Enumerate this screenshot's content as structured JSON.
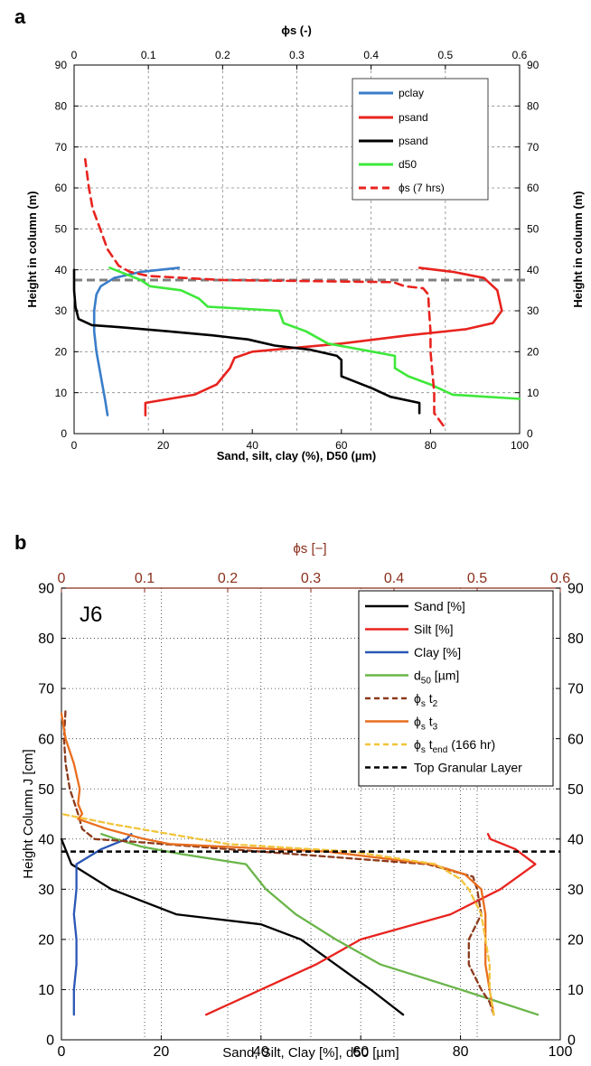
{
  "chart_data": [
    {
      "panel_label": "a",
      "type": "line",
      "top_axis": {
        "label": "ϕs (-)",
        "ticks": [
          "0",
          "0.1",
          "0.2",
          "0.3",
          "0.4",
          "0.5",
          "0.6"
        ],
        "range": [
          0,
          0.6
        ]
      },
      "xlabel": "Sand, silt, clay (%), D50 (µm)",
      "ylabel_left": "Height in column (m)",
      "ylabel_right": "Height in column (m)",
      "x_ticks": [
        "0",
        "20",
        "40",
        "60",
        "80",
        "100"
      ],
      "y_ticks": [
        "0",
        "10",
        "20",
        "30",
        "40",
        "50",
        "60",
        "70",
        "80",
        "90"
      ],
      "xlim": [
        0,
        100
      ],
      "ylim": [
        0,
        90
      ],
      "grid": true,
      "legend_position": "top-right",
      "series": [
        {
          "name": "pclay",
          "color": "#3a7dc9",
          "dash": false,
          "axis": "bottom",
          "points": [
            [
              7.5,
              4.5
            ],
            [
              7,
              8
            ],
            [
              6,
              14
            ],
            [
              5,
              20
            ],
            [
              4.5,
              25
            ],
            [
              4.5,
              30
            ],
            [
              5,
              34
            ],
            [
              6,
              36
            ],
            [
              9,
              38
            ],
            [
              15,
              39.5
            ],
            [
              23.5,
              40.5
            ]
          ]
        },
        {
          "name": "psand",
          "color": "#e8231e",
          "dash": false,
          "axis": "bottom",
          "points": [
            [
              16,
              4.5
            ],
            [
              16,
              7.5
            ],
            [
              27,
              9.5
            ],
            [
              32,
              12
            ],
            [
              35,
              16
            ],
            [
              36,
              18.5
            ],
            [
              40,
              20
            ],
            [
              50,
              21
            ],
            [
              60,
              22
            ],
            [
              75,
              24
            ],
            [
              88,
              25.5
            ],
            [
              94,
              27
            ],
            [
              96,
              30
            ],
            [
              95,
              35
            ],
            [
              92,
              38
            ],
            [
              85,
              39.5
            ],
            [
              77.5,
              40.5
            ]
          ]
        },
        {
          "name": "psand",
          "color": "#000000",
          "dash": false,
          "axis": "bottom",
          "points": [
            [
              77.5,
              5
            ],
            [
              77.5,
              7.5
            ],
            [
              71,
              9
            ],
            [
              67,
              11
            ],
            [
              60,
              14
            ],
            [
              60,
              18
            ],
            [
              59,
              19
            ],
            [
              53,
              20.5
            ],
            [
              45,
              21.5
            ],
            [
              39,
              23
            ],
            [
              31,
              24
            ],
            [
              21,
              25
            ],
            [
              10,
              26
            ],
            [
              4,
              26.5
            ],
            [
              1,
              28
            ],
            [
              0.3,
              31
            ],
            [
              0,
              35
            ],
            [
              0,
              40
            ]
          ]
        },
        {
          "name": "d50",
          "color": "#3ee83a",
          "dash": false,
          "axis": "bottom",
          "points": [
            [
              100,
              8.5
            ],
            [
              85,
              9.5
            ],
            [
              80,
              12
            ],
            [
              75,
              14
            ],
            [
              72,
              16
            ],
            [
              72,
              19
            ],
            [
              67,
              20
            ],
            [
              57,
              22
            ],
            [
              52,
              25
            ],
            [
              47,
              27
            ],
            [
              46,
              30
            ],
            [
              30,
              31
            ],
            [
              28,
              33
            ],
            [
              24,
              35
            ],
            [
              17,
              36
            ],
            [
              15,
              37.5
            ],
            [
              8,
              40.5
            ]
          ]
        },
        {
          "name": "ϕs (7 hrs)",
          "color": "#e8231e",
          "dash": true,
          "axis": "top",
          "points": [
            [
              0.497,
              2
            ],
            [
              0.485,
              5
            ],
            [
              0.485,
              10
            ],
            [
              0.48,
              20
            ],
            [
              0.48,
              25
            ],
            [
              0.478,
              30
            ],
            [
              0.477,
              34
            ],
            [
              0.47,
              35.5
            ],
            [
              0.445,
              36
            ],
            [
              0.43,
              37
            ],
            [
              0.2,
              37.5
            ],
            [
              0.1,
              38.5
            ],
            [
              0.075,
              39.5
            ],
            [
              0.06,
              41
            ],
            [
              0.045,
              45
            ],
            [
              0.035,
              50
            ],
            [
              0.025,
              55
            ],
            [
              0.02,
              60
            ],
            [
              0.015,
              67
            ]
          ]
        }
      ],
      "reference_line": {
        "y": 37.5,
        "color": "#7f7f7f",
        "dash": true
      }
    },
    {
      "panel_label": "b",
      "type": "line",
      "annotation": "J6",
      "top_axis": {
        "label": "ϕs [−]",
        "ticks": [
          "0",
          "0.1",
          "0.2",
          "0.3",
          "0.4",
          "0.5",
          "0.6"
        ],
        "range": [
          0,
          0.6
        ],
        "color": "#8b2f1c"
      },
      "xlabel": "Sand, Silt, Clay [%], d50 [µm]",
      "ylabel": "Height Column J [cm]",
      "x_ticks": [
        "0",
        "20",
        "40",
        "60",
        "80",
        "100"
      ],
      "y_ticks": [
        "0",
        "10",
        "20",
        "30",
        "40",
        "50",
        "60",
        "70",
        "80",
        "90"
      ],
      "xlim": [
        0,
        100
      ],
      "ylim": [
        0,
        90
      ],
      "grid": true,
      "legend_position": "top-right",
      "legend": [
        {
          "main": "Sand [%]",
          "sub": "",
          "tail": ""
        },
        {
          "main": "Silt    [%]",
          "sub": "",
          "tail": ""
        },
        {
          "main": "Clay  [%]",
          "sub": "",
          "tail": ""
        },
        {
          "main": "d",
          "sub": "50",
          "tail": " [µm]"
        },
        {
          "main": "ϕ",
          "sub": "s",
          "tail": " t",
          "sub2": "2"
        },
        {
          "main": "ϕ",
          "sub": "s",
          "tail": " t",
          "sub2": "3"
        },
        {
          "main": "ϕ",
          "sub": "s",
          "tail": " t",
          "sub2": "end",
          "tail2": " (166 hr)"
        },
        {
          "main": "Top Granular Layer",
          "sub": "",
          "tail": ""
        }
      ],
      "series": [
        {
          "color": "#000000",
          "dash": false,
          "axis": "bottom",
          "points": [
            [
              68.5,
              5
            ],
            [
              62,
              10
            ],
            [
              55,
              15
            ],
            [
              48,
              20
            ],
            [
              40,
              23
            ],
            [
              23,
              25
            ],
            [
              10,
              30
            ],
            [
              2,
              35
            ],
            [
              0,
              40
            ]
          ]
        },
        {
          "color": "#e8231e",
          "dash": false,
          "axis": "bottom",
          "points": [
            [
              29,
              5
            ],
            [
              40,
              10
            ],
            [
              51,
              15
            ],
            [
              60,
              20
            ],
            [
              78,
              25
            ],
            [
              88,
              30
            ],
            [
              95,
              35
            ],
            [
              91,
              38
            ],
            [
              86,
              40
            ],
            [
              85.5,
              41
            ]
          ]
        },
        {
          "color": "#2a57b5",
          "dash": false,
          "axis": "bottom",
          "points": [
            [
              2.5,
              5
            ],
            [
              2.5,
              10
            ],
            [
              3,
              15
            ],
            [
              3,
              20
            ],
            [
              2.5,
              25
            ],
            [
              3,
              30
            ],
            [
              3,
              35
            ],
            [
              8,
              38
            ],
            [
              13,
              40
            ],
            [
              14,
              41
            ]
          ]
        },
        {
          "color": "#6ab54a",
          "dash": false,
          "axis": "bottom",
          "points": [
            [
              95.5,
              5
            ],
            [
              80,
              10
            ],
            [
              64,
              15
            ],
            [
              55,
              20
            ],
            [
              47,
              25
            ],
            [
              41,
              30
            ],
            [
              37,
              35
            ],
            [
              24,
              37
            ],
            [
              16,
              38.5
            ],
            [
              11,
              40
            ],
            [
              8,
              41
            ]
          ]
        },
        {
          "color": "#8b3a1c",
          "dash": true,
          "axis": "top",
          "points": [
            [
              0.52,
              5
            ],
            [
              0.515,
              7.5
            ],
            [
              0.505,
              10
            ],
            [
              0.49,
              15
            ],
            [
              0.49,
              20
            ],
            [
              0.505,
              25
            ],
            [
              0.5,
              30
            ],
            [
              0.495,
              32.5
            ],
            [
              0.44,
              35
            ],
            [
              0.2,
              38
            ],
            [
              0.085,
              39.5
            ],
            [
              0.04,
              40
            ],
            [
              0.025,
              42
            ],
            [
              0.02,
              45
            ],
            [
              0.01,
              50
            ],
            [
              0.005,
              55
            ],
            [
              0.003,
              60
            ],
            [
              0.005,
              66
            ]
          ]
        },
        {
          "color": "#e86e1e",
          "dash": false,
          "axis": "top",
          "points": [
            [
              0.52,
              5
            ],
            [
              0.515,
              10
            ],
            [
              0.51,
              15
            ],
            [
              0.51,
              20
            ],
            [
              0.51,
              25
            ],
            [
              0.505,
              30
            ],
            [
              0.485,
              33
            ],
            [
              0.445,
              35
            ],
            [
              0.32,
              37.5
            ],
            [
              0.13,
              39
            ],
            [
              0.1,
              40
            ],
            [
              0.055,
              42
            ],
            [
              0.02,
              44
            ],
            [
              0.025,
              45
            ],
            [
              0.02,
              47
            ],
            [
              0.022,
              50
            ],
            [
              0.015,
              55
            ],
            [
              0.005,
              60
            ],
            [
              0.0,
              65
            ]
          ]
        },
        {
          "color": "#f2c43c",
          "dash": true,
          "axis": "top",
          "points": [
            [
              0.52,
              5
            ],
            [
              0.515,
              10
            ],
            [
              0.515,
              15
            ],
            [
              0.51,
              20
            ],
            [
              0.505,
              25
            ],
            [
              0.49,
              30
            ],
            [
              0.48,
              32
            ],
            [
              0.45,
              35
            ],
            [
              0.35,
              37.5
            ],
            [
              0.2,
              39
            ],
            [
              0.06,
              43
            ],
            [
              0.0,
              45
            ]
          ]
        },
        {
          "color": "#000000",
          "dash": true,
          "axis": "bottom",
          "points": [
            [
              0,
              37.5
            ],
            [
              100,
              37.5
            ]
          ]
        }
      ]
    }
  ]
}
